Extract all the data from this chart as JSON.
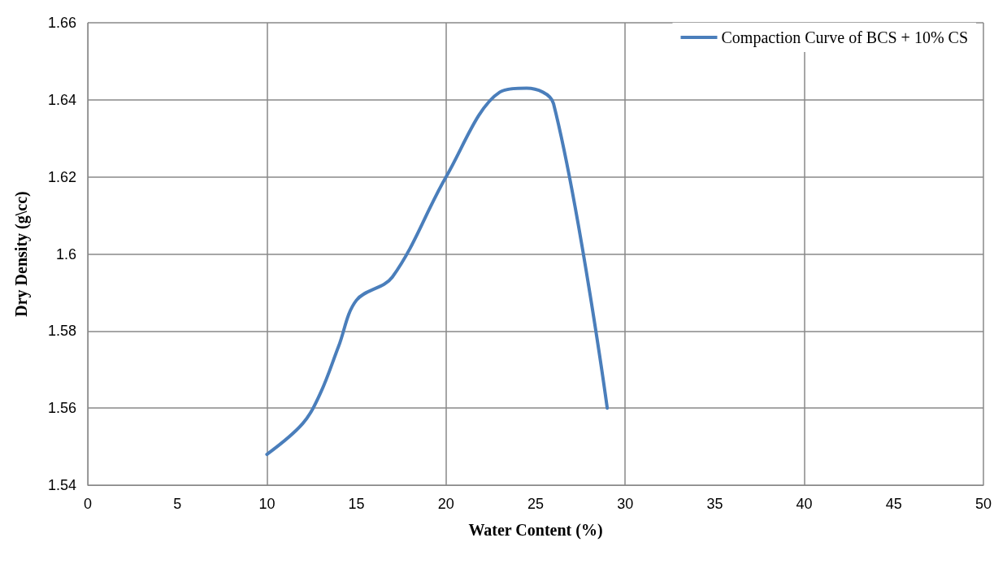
{
  "chart_data": {
    "type": "line",
    "xlabel": "Water Content (%)",
    "ylabel": "Dry Density (g\\cc)",
    "xlim": [
      0,
      50
    ],
    "xticks": [
      0,
      5,
      10,
      15,
      20,
      25,
      30,
      35,
      40,
      45,
      50
    ],
    "ylim": [
      1.54,
      1.66
    ],
    "yticks": [
      1.54,
      1.56,
      1.58,
      1.6,
      1.62,
      1.64,
      1.66
    ],
    "grid": true,
    "legend": "top right",
    "marker": "none",
    "line_style": "solid",
    "series": [
      {
        "name": "Compaction Curve of BCS + 10% CS",
        "color": "#4a7ebb",
        "x": [
          10,
          12,
          13,
          14,
          15,
          17,
          20,
          23,
          24.5,
          26,
          29
        ],
        "values": [
          1.548,
          1.556,
          1.564,
          1.576,
          1.588,
          1.594,
          1.62,
          1.642,
          1.643,
          1.639,
          1.56
        ]
      }
    ]
  }
}
